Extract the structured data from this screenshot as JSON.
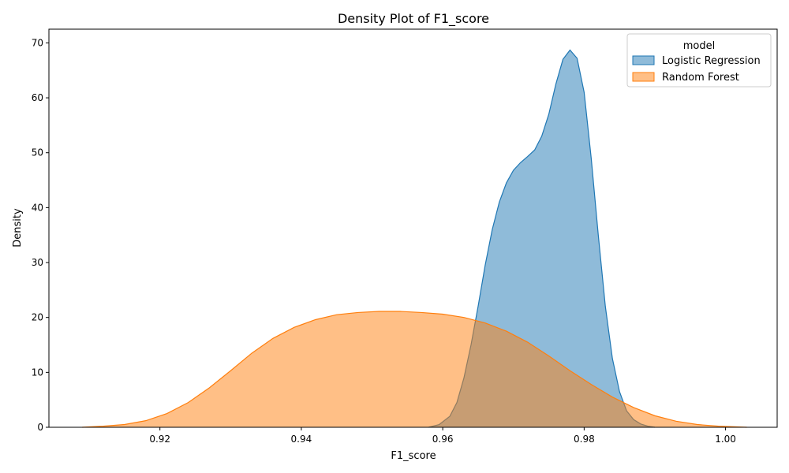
{
  "chart_data": {
    "type": "area",
    "title": "Density Plot of F1_score",
    "xlabel": "F1_score",
    "ylabel": "Density",
    "xlim": [
      0.9043,
      1.0073
    ],
    "ylim": [
      0,
      72.5
    ],
    "x_ticks": [
      0.92,
      0.94,
      0.96,
      0.98,
      1.0
    ],
    "x_tick_labels": [
      "0.92",
      "0.94",
      "0.96",
      "0.98",
      "1.00"
    ],
    "y_ticks": [
      0,
      10,
      20,
      30,
      40,
      50,
      60,
      70
    ],
    "y_tick_labels": [
      "0",
      "10",
      "20",
      "30",
      "40",
      "50",
      "60",
      "70"
    ],
    "grid": false,
    "legend": {
      "title": "model",
      "placement": "top-right"
    },
    "series": [
      {
        "name": "Logistic Regression",
        "color": "#1f77b4",
        "fill": "#1f77b4",
        "fill_opacity": 0.5,
        "points": [
          [
            0.958,
            0.0
          ],
          [
            0.9595,
            0.5
          ],
          [
            0.961,
            2.0
          ],
          [
            0.962,
            4.5
          ],
          [
            0.963,
            9.0
          ],
          [
            0.964,
            15.0
          ],
          [
            0.965,
            22.0
          ],
          [
            0.966,
            29.5
          ],
          [
            0.967,
            36.0
          ],
          [
            0.968,
            41.0
          ],
          [
            0.969,
            44.5
          ],
          [
            0.97,
            46.8
          ],
          [
            0.971,
            48.2
          ],
          [
            0.972,
            49.3
          ],
          [
            0.973,
            50.5
          ],
          [
            0.974,
            53.0
          ],
          [
            0.975,
            57.0
          ],
          [
            0.976,
            62.5
          ],
          [
            0.977,
            67.0
          ],
          [
            0.978,
            68.7
          ],
          [
            0.979,
            67.2
          ],
          [
            0.98,
            61.0
          ],
          [
            0.981,
            49.0
          ],
          [
            0.982,
            35.0
          ],
          [
            0.983,
            22.0
          ],
          [
            0.984,
            12.5
          ],
          [
            0.985,
            6.5
          ],
          [
            0.986,
            3.0
          ],
          [
            0.987,
            1.4
          ],
          [
            0.988,
            0.6
          ],
          [
            0.989,
            0.2
          ],
          [
            0.99,
            0.0
          ]
        ]
      },
      {
        "name": "Random Forest",
        "color": "#ff7f0e",
        "fill": "#ff7f0e",
        "fill_opacity": 0.5,
        "points": [
          [
            0.909,
            0.0
          ],
          [
            0.912,
            0.2
          ],
          [
            0.915,
            0.5
          ],
          [
            0.918,
            1.2
          ],
          [
            0.921,
            2.5
          ],
          [
            0.924,
            4.5
          ],
          [
            0.927,
            7.2
          ],
          [
            0.93,
            10.3
          ],
          [
            0.933,
            13.5
          ],
          [
            0.936,
            16.2
          ],
          [
            0.939,
            18.2
          ],
          [
            0.942,
            19.6
          ],
          [
            0.945,
            20.5
          ],
          [
            0.948,
            20.9
          ],
          [
            0.951,
            21.1
          ],
          [
            0.954,
            21.1
          ],
          [
            0.957,
            20.9
          ],
          [
            0.96,
            20.6
          ],
          [
            0.963,
            20.0
          ],
          [
            0.966,
            19.0
          ],
          [
            0.969,
            17.5
          ],
          [
            0.972,
            15.5
          ],
          [
            0.975,
            13.0
          ],
          [
            0.978,
            10.3
          ],
          [
            0.981,
            7.8
          ],
          [
            0.984,
            5.5
          ],
          [
            0.987,
            3.6
          ],
          [
            0.99,
            2.1
          ],
          [
            0.993,
            1.1
          ],
          [
            0.996,
            0.5
          ],
          [
            0.999,
            0.2
          ],
          [
            1.003,
            0.0
          ]
        ]
      }
    ]
  }
}
